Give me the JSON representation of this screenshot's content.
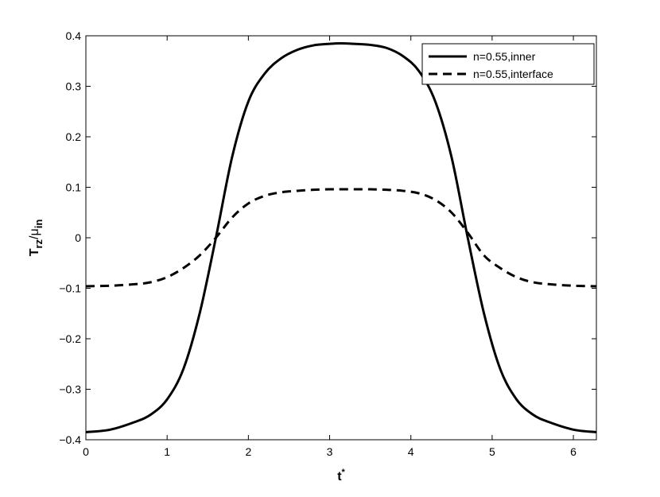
{
  "chart_data": {
    "type": "line",
    "xlabel": "t",
    "xlabel_sup": "*",
    "ylabel_main": "T",
    "ylabel_sub": "rz",
    "ylabel_slash": "/μ",
    "ylabel_sub2": "in",
    "xlim": [
      0,
      6.2832
    ],
    "ylim": [
      -0.4,
      0.4
    ],
    "xticks": [
      0,
      1,
      2,
      3,
      4,
      5,
      6
    ],
    "xtick_labels": [
      "0",
      "1",
      "2",
      "3",
      "4",
      "5",
      "6"
    ],
    "yticks": [
      -0.4,
      -0.3,
      -0.2,
      -0.1,
      0,
      0.1,
      0.2,
      0.3,
      0.4
    ],
    "ytick_labels": [
      "−0.4",
      "−0.3",
      "−0.2",
      "−0.1",
      "0",
      "0.1",
      "0.2",
      "0.3",
      "0.4"
    ],
    "grid": false,
    "legend_position": "top-right",
    "line_color": "#000000",
    "series": [
      {
        "name": "n=0.55,inner",
        "style": "solid",
        "x": [
          0,
          0.3,
          0.6,
          0.8,
          1.0,
          1.2,
          1.4,
          1.6,
          1.8,
          2.0,
          2.2,
          2.4,
          2.6,
          2.8,
          3.0,
          3.1416,
          3.3,
          3.5,
          3.7,
          3.9,
          4.1,
          4.3,
          4.5,
          4.7,
          4.9,
          5.1,
          5.3,
          5.5,
          5.7,
          6.0,
          6.2832
        ],
        "y": [
          -0.385,
          -0.38,
          -0.365,
          -0.35,
          -0.32,
          -0.26,
          -0.15,
          0.0,
          0.16,
          0.27,
          0.325,
          0.355,
          0.372,
          0.381,
          0.384,
          0.385,
          0.384,
          0.382,
          0.376,
          0.36,
          0.33,
          0.27,
          0.16,
          0.0,
          -0.15,
          -0.26,
          -0.32,
          -0.35,
          -0.365,
          -0.38,
          -0.385
        ]
      },
      {
        "name": "n=0.55,interface",
        "style": "dashed",
        "x": [
          0,
          0.3,
          0.6,
          0.8,
          1.0,
          1.2,
          1.4,
          1.6,
          1.8,
          2.0,
          2.2,
          2.4,
          2.6,
          2.8,
          3.0,
          3.1416,
          3.3,
          3.5,
          3.7,
          3.9,
          4.1,
          4.3,
          4.5,
          4.7,
          4.9,
          5.1,
          5.3,
          5.5,
          5.7,
          6.0,
          6.2832
        ],
        "y": [
          -0.096,
          -0.095,
          -0.092,
          -0.088,
          -0.078,
          -0.06,
          -0.035,
          0.0,
          0.04,
          0.068,
          0.083,
          0.09,
          0.093,
          0.095,
          0.096,
          0.096,
          0.096,
          0.096,
          0.095,
          0.093,
          0.088,
          0.075,
          0.05,
          0.01,
          -0.035,
          -0.06,
          -0.078,
          -0.088,
          -0.092,
          -0.095,
          -0.096
        ]
      }
    ]
  }
}
